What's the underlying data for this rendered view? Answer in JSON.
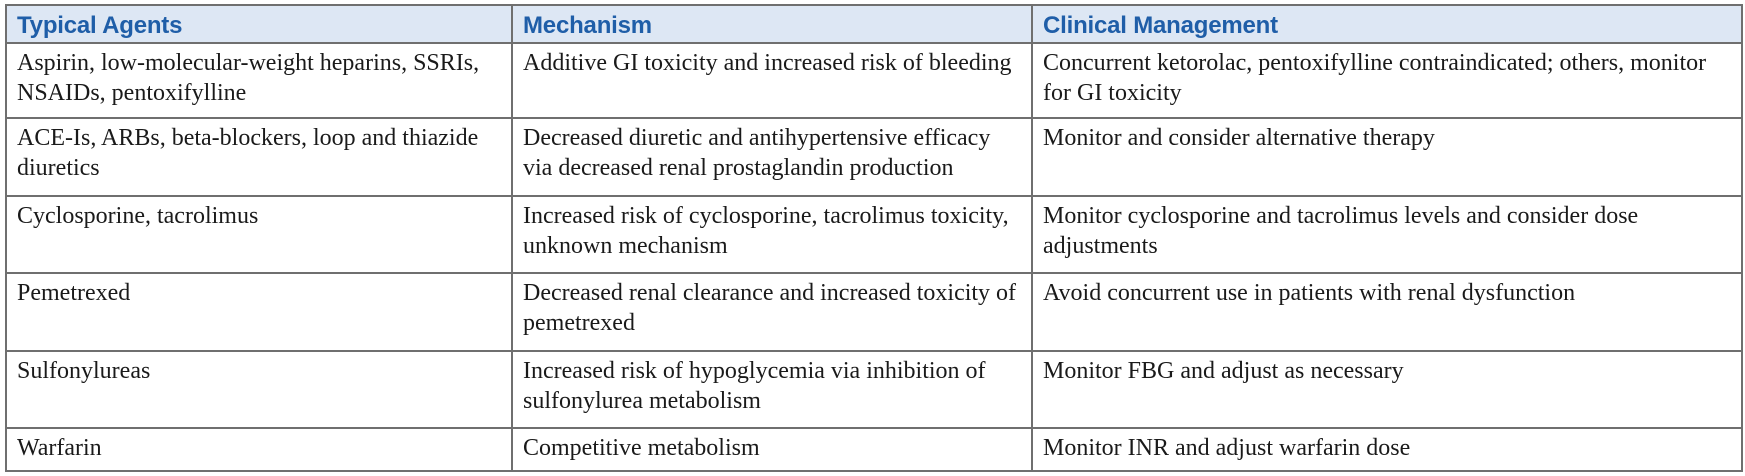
{
  "headers": [
    "Typical Agents",
    "Mechanism",
    "Clinical Management"
  ],
  "rows": [
    [
      "Aspirin, low-molecular-weight heparins, SSRIs, NSAIDs, pentoxifylline",
      "Additive GI toxicity and increased risk of bleeding",
      "Concurrent ketorolac, pentoxifylline contraindicated; others, monitor for GI toxicity"
    ],
    [
      "ACE-Is, ARBs, beta-blockers, loop and thiazide diuretics",
      "Decreased diuretic and antihypertensive efficacy via decreased renal prostaglandin production",
      "Monitor and consider alternative therapy"
    ],
    [
      "Cyclosporine, tacrolimus",
      "Increased risk of cyclosporine, tacrolimus toxicity, unknown mechanism",
      "Monitor cyclosporine and tacrolimus levels and consider dose adjustments"
    ],
    [
      "Pemetrexed",
      "Decreased renal clearance and increased toxicity of pemetrexed",
      "Avoid concurrent use in patients with renal dysfunction"
    ],
    [
      "Sulfonylureas",
      "Increased risk of hypoglycemia via inhibition of sulfonylurea metabolism",
      "Monitor FBG and adjust as necessary"
    ],
    [
      "Warfarin",
      "Competitive metabolism",
      "Monitor INR and adjust warfarin dose"
    ]
  ],
  "colors": {
    "header_text": "#1f5ea8",
    "header_bg": "#dde7f4",
    "border": "#6f6f6f",
    "body_text": "#1a1a1a"
  }
}
